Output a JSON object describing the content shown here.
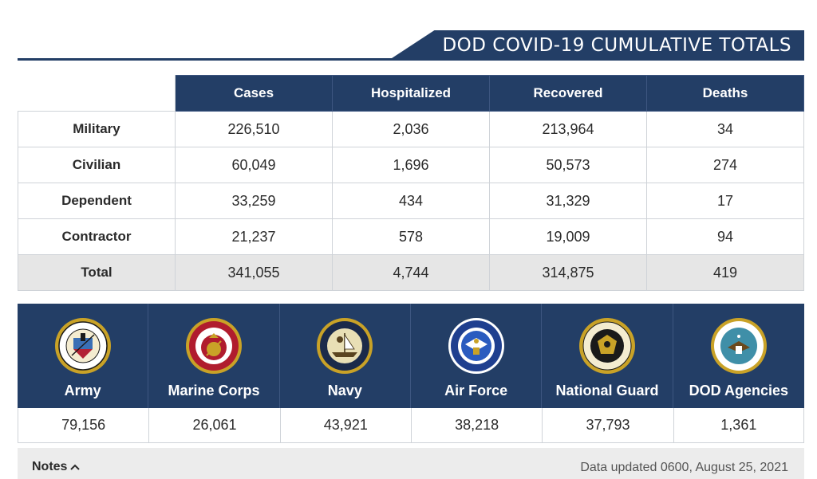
{
  "header": {
    "title": "DOD COVID-19 CUMULATIVE TOTALS"
  },
  "table": {
    "columns": [
      "Cases",
      "Hospitalized",
      "Recovered",
      "Deaths"
    ],
    "rows": [
      {
        "label": "Military",
        "values": [
          "226,510",
          "2,036",
          "213,964",
          "34"
        ]
      },
      {
        "label": "Civilian",
        "values": [
          "60,049",
          "1,696",
          "50,573",
          "274"
        ]
      },
      {
        "label": "Dependent",
        "values": [
          "33,259",
          "434",
          "31,329",
          "17"
        ]
      },
      {
        "label": "Contractor",
        "values": [
          "21,237",
          "578",
          "19,009",
          "94"
        ]
      },
      {
        "label": "Total",
        "values": [
          "341,055",
          "4,744",
          "314,875",
          "419"
        ]
      }
    ]
  },
  "branches": [
    {
      "name": "Army",
      "count": "79,156",
      "seal": "army-seal-icon"
    },
    {
      "name": "Marine Corps",
      "count": "26,061",
      "seal": "marine-corps-seal-icon"
    },
    {
      "name": "Navy",
      "count": "43,921",
      "seal": "navy-seal-icon"
    },
    {
      "name": "Air Force",
      "count": "38,218",
      "seal": "air-force-seal-icon"
    },
    {
      "name": "National Guard",
      "count": "37,793",
      "seal": "national-guard-seal-icon"
    },
    {
      "name": "DOD Agencies",
      "count": "1,361",
      "seal": "dod-seal-icon"
    }
  ],
  "notes": {
    "label": "Notes",
    "chevron": "chevron-up-icon"
  },
  "updated": "Data updated 0600, August 25, 2021",
  "colors": {
    "navy": "#233e66",
    "grid": "#cfd3d8",
    "total_row": "#e6e6e6",
    "notes_bg": "#ececec"
  }
}
